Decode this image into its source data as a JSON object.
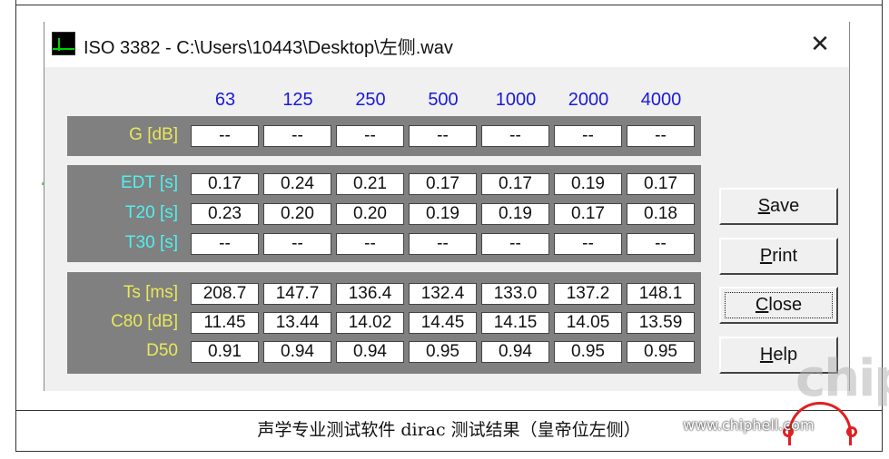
{
  "window": {
    "title": "ISO 3382 - C:\\Users\\10443\\Desktop\\左侧.wav",
    "close_glyph": "✕"
  },
  "frequencies": [
    "63",
    "125",
    "250",
    "500",
    "1000",
    "2000",
    "4000"
  ],
  "rows": {
    "g": {
      "label": "G [dB]",
      "values": [
        "--",
        "--",
        "--",
        "--",
        "--",
        "--",
        "--"
      ]
    },
    "edt": {
      "label": "EDT [s]",
      "values": [
        "0.17",
        "0.24",
        "0.21",
        "0.17",
        "0.17",
        "0.19",
        "0.17"
      ]
    },
    "t20": {
      "label": "T20 [s]",
      "values": [
        "0.23",
        "0.20",
        "0.20",
        "0.19",
        "0.19",
        "0.17",
        "0.18"
      ]
    },
    "t30": {
      "label": "T30 [s]",
      "values": [
        "--",
        "--",
        "--",
        "--",
        "--",
        "--",
        "--"
      ]
    },
    "ts": {
      "label": "Ts [ms]",
      "values": [
        "208.7",
        "147.7",
        "136.4",
        "132.4",
        "133.0",
        "137.2",
        "148.1"
      ]
    },
    "c80": {
      "label": "C80 [dB]",
      "values": [
        "11.45",
        "13.44",
        "14.02",
        "14.45",
        "14.15",
        "14.05",
        "13.59"
      ]
    },
    "d50": {
      "label": "D50",
      "values": [
        "0.91",
        "0.94",
        "0.94",
        "0.95",
        "0.94",
        "0.95",
        "0.95"
      ]
    }
  },
  "buttons": {
    "save": {
      "hotkey": "S",
      "rest": "ave"
    },
    "print": {
      "hotkey": "P",
      "rest": "rint"
    },
    "close": {
      "hotkey": "C",
      "rest": "lose"
    },
    "help": {
      "hotkey": "H",
      "rest": "elp"
    }
  },
  "caption": "声学专业测试软件 dirac 测试结果（皇帝位左侧）",
  "watermark": {
    "logo_text": "chip",
    "url": "www.chiphell.com"
  },
  "colors": {
    "frequency_text": "#1a1adc",
    "panel_bg": "#808080",
    "label_yellow": "#e8e85a",
    "label_cyan": "#4ff0f0",
    "icon_wave": "#00d000",
    "watermark_red": "#e02020"
  }
}
